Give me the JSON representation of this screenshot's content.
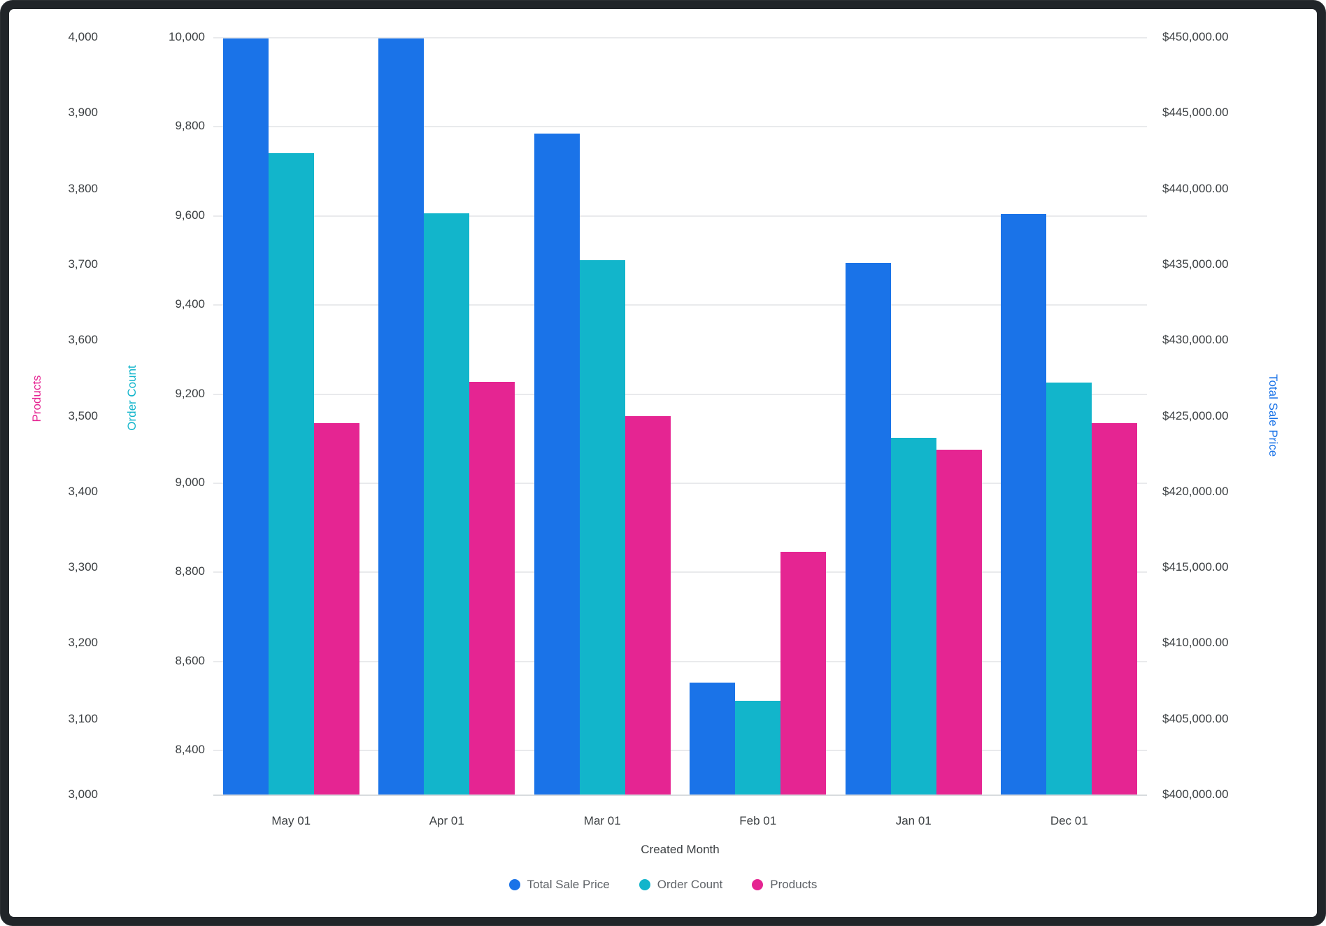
{
  "chart_data": {
    "type": "bar",
    "subtype": "grouped-vertical-multi-axis",
    "categories": [
      "May 01",
      "Apr 01",
      "Mar 01",
      "Feb 01",
      "Jan 01",
      "Dec 01"
    ],
    "series": [
      {
        "name": "Total Sale Price",
        "color": "#1A73E8",
        "axis": "total_sale_price",
        "values": [
          449900,
          449900,
          443650,
          407400,
          435100,
          438300
        ]
      },
      {
        "name": "Order Count",
        "color": "#12B5CB",
        "axis": "order_count",
        "values": [
          9740,
          9605,
          9500,
          8510,
          9100,
          9225
        ]
      },
      {
        "name": "Products",
        "color": "#E52592",
        "axis": "products",
        "values": [
          3490,
          3545,
          3500,
          3320,
          3455,
          3490
        ]
      }
    ],
    "axes": {
      "products": {
        "title": "Products",
        "title_color": "#E52592",
        "side": "left-outer",
        "min": 3000,
        "max": 4000,
        "tick_values": [
          4000,
          3900,
          3800,
          3700,
          3600,
          3500,
          3400,
          3300,
          3200,
          3100,
          3000
        ],
        "tick_labels": [
          "4,000",
          "3,900",
          "3,800",
          "3,700",
          "3,600",
          "3,500",
          "3,400",
          "3,300",
          "3,200",
          "3,100",
          "3,000"
        ]
      },
      "order_count": {
        "title": "Order Count",
        "title_color": "#12B5CB",
        "side": "left-inner",
        "min": 8300,
        "max": 10000,
        "gridlines": true,
        "tick_values": [
          10000,
          9800,
          9600,
          9400,
          9200,
          9000,
          8800,
          8600,
          8400
        ],
        "tick_labels": [
          "10,000",
          "9,800",
          "9,600",
          "9,400",
          "9,200",
          "9,000",
          "8,800",
          "8,600",
          "8,400"
        ]
      },
      "total_sale_price": {
        "title": "Total Sale Price",
        "title_color": "#1A73E8",
        "side": "right",
        "min": 400000,
        "max": 450000,
        "tick_values": [
          450000,
          445000,
          440000,
          435000,
          430000,
          425000,
          420000,
          415000,
          410000,
          405000,
          400000
        ],
        "tick_labels": [
          "$450,000.00",
          "$445,000.00",
          "$440,000.00",
          "$435,000.00",
          "$430,000.00",
          "$425,000.00",
          "$420,000.00",
          "$415,000.00",
          "$410,000.00",
          "$405,000.00",
          "$400,000.00"
        ]
      }
    },
    "xlabel": "Created Month",
    "legend": [
      "Total Sale Price",
      "Order Count",
      "Products"
    ],
    "legend_position": "bottom-center",
    "grid": true,
    "gridline_color": "#e9eaec",
    "background_color": "#ffffff",
    "frame_color": "#212529",
    "tick_text_color": "#3c4043",
    "legend_text_color": "#5f6368"
  }
}
